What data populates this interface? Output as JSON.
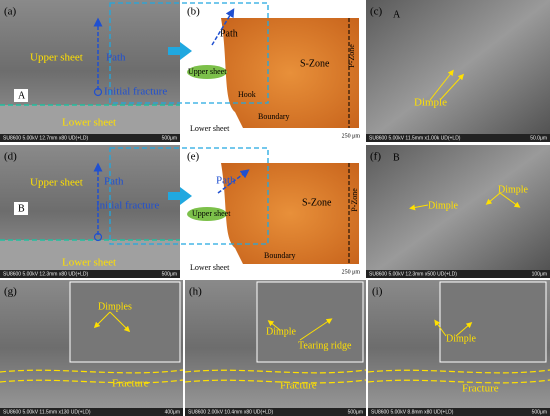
{
  "panels": [
    {
      "label": "(a)",
      "texts": [
        "Upper sheet",
        "Path",
        "Initial fracture",
        "A",
        "Lower sheet"
      ],
      "footer": "SU8600 5.00kV 12.7mm x80 UD(+LD)",
      "scale": "500μm"
    },
    {
      "label": "(b)",
      "texts": [
        "Path",
        "Upper sheet",
        "Hook",
        "Boundary",
        "Lower sheet",
        "S-Zone",
        "P-Zone"
      ],
      "scale": "250 μm"
    },
    {
      "label": "(c)",
      "texts": [
        "A",
        "Dimple"
      ],
      "footer": "SU8600 5.00kV 11.5mm x1.00k UD(+LD)",
      "scale": "50.0μm"
    },
    {
      "label": "(d)",
      "texts": [
        "Upper sheet",
        "Path",
        "B",
        "Initial fracture",
        "Lower sheet"
      ],
      "footer": "SU8600 5.00kV 12.3mm x80 UD(+LD)",
      "scale": "500μm"
    },
    {
      "label": "(e)",
      "texts": [
        "Path",
        "Upper sheet",
        "S-Zone",
        "P-Zone",
        "Lower sheet",
        "Boundary"
      ],
      "scale": "250 μm"
    },
    {
      "label": "(f)",
      "texts": [
        "B",
        "Dimple",
        "Dimple"
      ],
      "footer": "SU8600 5.00kV 12.3mm x500 UD(+LD)",
      "scale": "100μm"
    },
    {
      "label": "(g)",
      "texts": [
        "Dimples",
        "Fracture"
      ],
      "footer": "SU8600 5.00kV 11.5mm x130 UD(+LD)",
      "scale": "400μm"
    },
    {
      "label": "(h)",
      "texts": [
        "Dimple",
        "Tearing ridge",
        "Fracture"
      ],
      "footer": "SU8600 2.00kV 10.4mm x80 UD(+LD)",
      "scale": "500μm"
    },
    {
      "label": "(i)",
      "texts": [
        "Dimple",
        "Fracture"
      ],
      "footer": "SU8600 5.00kV 8.8mm x80 UD(+LD)",
      "scale": "500μm"
    }
  ]
}
